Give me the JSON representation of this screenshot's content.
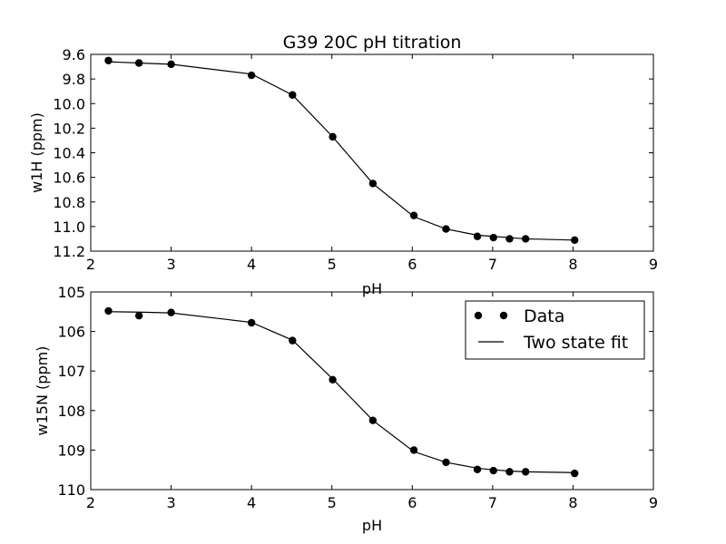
{
  "chart_data": [
    {
      "type": "scatter",
      "title": "G39 20C pH titration",
      "xlabel": "pH",
      "ylabel": "w1H (ppm)",
      "xlim": [
        2,
        9
      ],
      "ylim": [
        9.6,
        11.2
      ],
      "y_inverted": true,
      "xticks": [
        "2",
        "3",
        "4",
        "5",
        "6",
        "7",
        "8",
        "9"
      ],
      "yticks": [
        "9.6",
        "9.8",
        "10.0",
        "10.2",
        "10.4",
        "10.6",
        "10.8",
        "11.0",
        "11.2"
      ],
      "series": [
        {
          "name": "Data",
          "style": "markers",
          "x": [
            2.22,
            2.6,
            3.0,
            4.0,
            4.51,
            5.01,
            5.51,
            6.02,
            6.42,
            6.81,
            7.01,
            7.21,
            7.41,
            8.02
          ],
          "y": [
            9.65,
            9.67,
            9.68,
            9.77,
            9.93,
            10.27,
            10.65,
            10.91,
            11.02,
            11.08,
            11.09,
            11.1,
            11.1,
            11.11
          ]
        },
        {
          "name": "Two state fit",
          "style": "line",
          "x": [
            2.22,
            2.6,
            3.0,
            4.0,
            4.51,
            5.01,
            5.51,
            6.02,
            6.42,
            6.81,
            7.01,
            7.21,
            7.41,
            8.02
          ],
          "y": [
            9.66,
            9.67,
            9.68,
            9.76,
            9.93,
            10.27,
            10.65,
            10.92,
            11.02,
            11.07,
            11.08,
            11.09,
            11.1,
            11.11
          ]
        }
      ]
    },
    {
      "type": "scatter",
      "title": "",
      "xlabel": "pH",
      "ylabel": "w15N (ppm)",
      "xlim": [
        2,
        9
      ],
      "ylim": [
        105,
        110
      ],
      "y_inverted": true,
      "xticks": [
        "2",
        "3",
        "4",
        "5",
        "6",
        "7",
        "8",
        "9"
      ],
      "yticks": [
        "105",
        "106",
        "107",
        "108",
        "109",
        "110"
      ],
      "legend": {
        "position": "upper-right",
        "entries": [
          "Data",
          "Two state fit"
        ]
      },
      "series": [
        {
          "name": "Data",
          "style": "markers",
          "x": [
            2.22,
            2.6,
            3.0,
            4.0,
            4.51,
            5.01,
            5.51,
            6.02,
            6.42,
            6.81,
            7.01,
            7.21,
            7.41,
            8.02
          ],
          "y": [
            105.48,
            105.6,
            105.52,
            105.78,
            106.23,
            107.22,
            108.25,
            109.0,
            109.31,
            109.49,
            109.52,
            109.55,
            109.55,
            109.59
          ]
        },
        {
          "name": "Two state fit",
          "style": "line",
          "x": [
            2.22,
            2.6,
            3.0,
            4.0,
            4.51,
            5.01,
            5.51,
            6.02,
            6.42,
            6.81,
            7.01,
            7.21,
            7.41,
            8.02
          ],
          "y": [
            105.5,
            105.51,
            105.53,
            105.77,
            106.22,
            107.2,
            108.25,
            109.04,
            109.31,
            109.46,
            109.5,
            109.53,
            109.55,
            109.57
          ]
        }
      ]
    }
  ]
}
